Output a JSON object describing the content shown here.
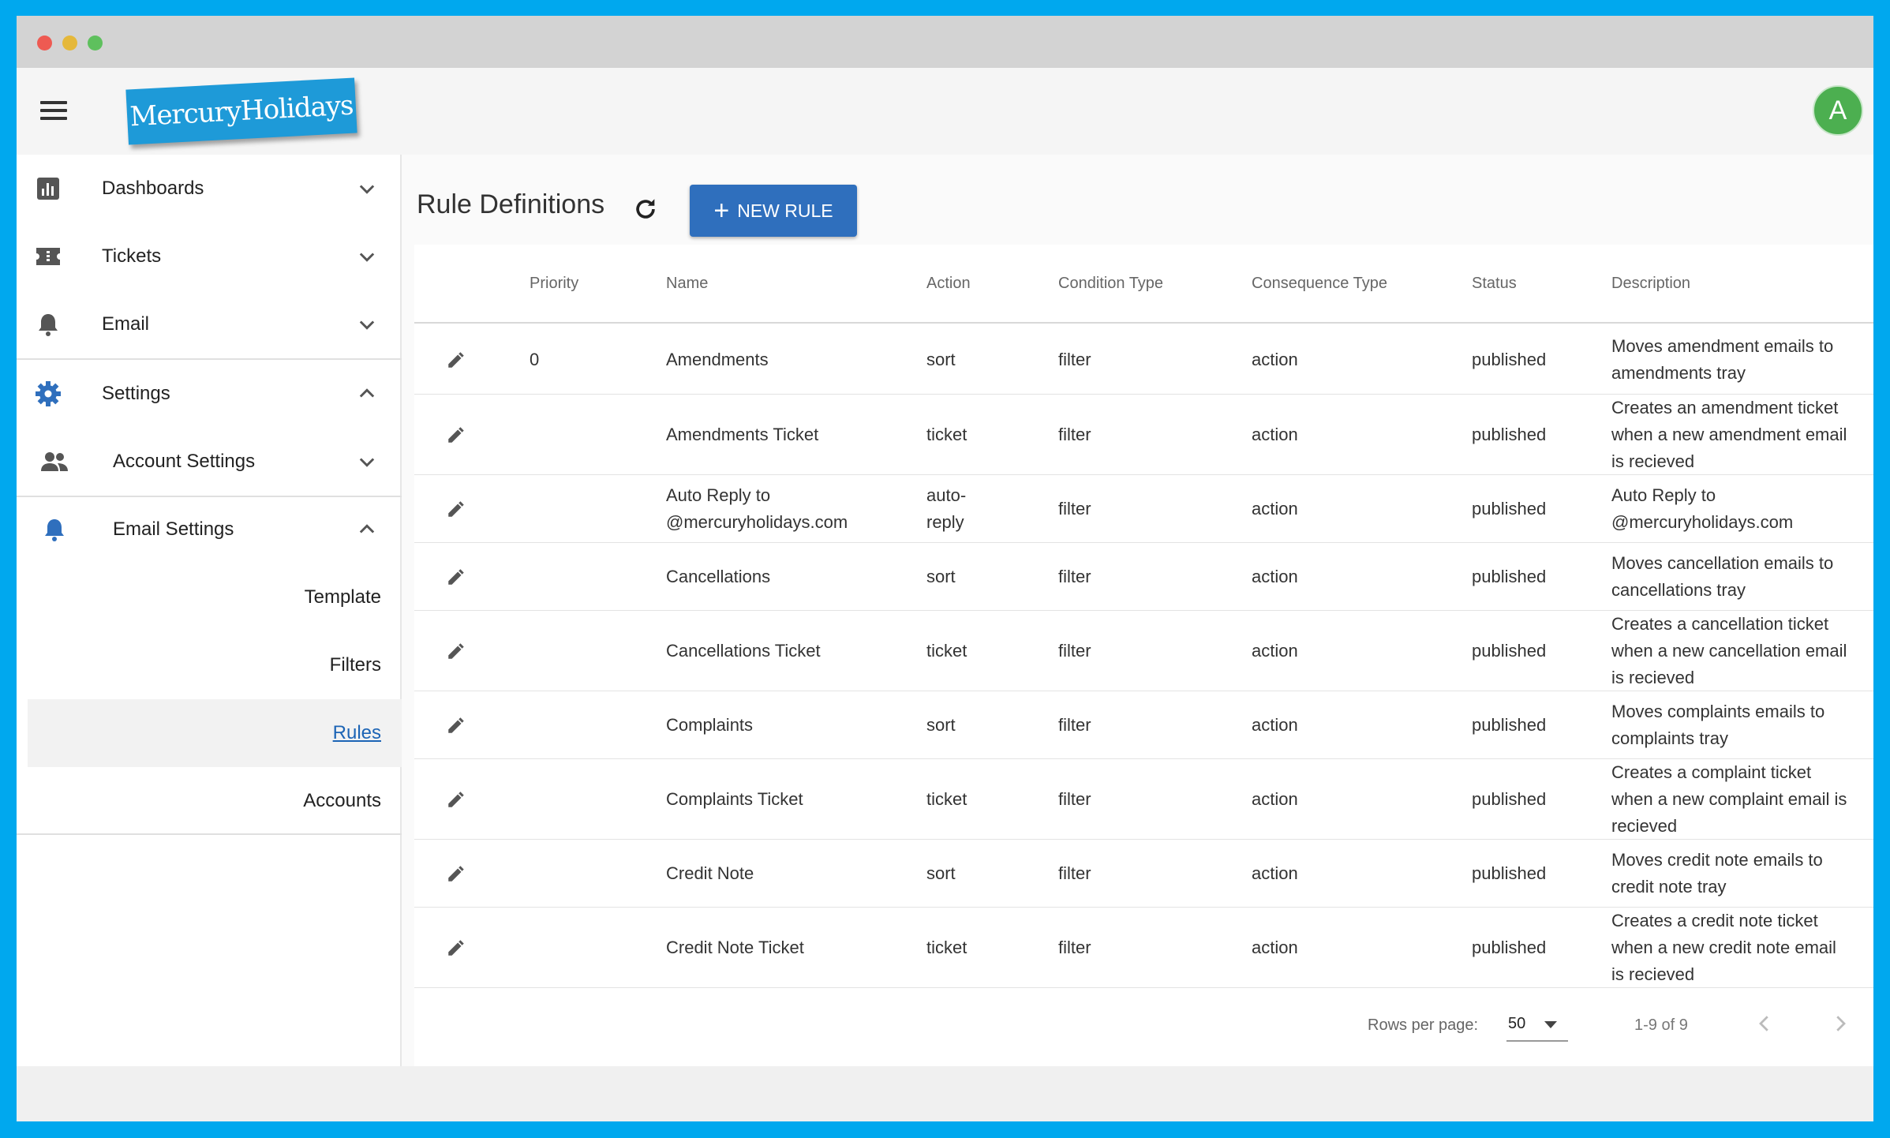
{
  "colors": {
    "accent": "#2f6fbd",
    "active_link": "#1c64b5",
    "avatar": "#4caf50",
    "frame": "#00a8ee"
  },
  "appbar": {
    "logo_text": "MercuryHolidays",
    "avatar_letter": "A"
  },
  "sidebar": {
    "items": [
      {
        "label": "Dashboards",
        "icon": "bar-chart-icon"
      },
      {
        "label": "Tickets",
        "icon": "ticket-icon"
      },
      {
        "label": "Email",
        "icon": "bell-icon"
      },
      {
        "label": "Settings",
        "icon": "gear-icon"
      },
      {
        "label": "Account Settings",
        "icon": "people-icon"
      },
      {
        "label": "Email Settings",
        "icon": "bell-icon"
      }
    ],
    "links": [
      "Template",
      "Filters",
      "Rules",
      "Accounts"
    ]
  },
  "main": {
    "title": "Rule Definitions",
    "new_button": "NEW RULE",
    "columns": [
      "Priority",
      "Name",
      "Action",
      "Condition Type",
      "Consequence Type",
      "Status",
      "Description"
    ],
    "rows": [
      {
        "priority": "0",
        "name": "Amendments",
        "action": "sort",
        "condition": "filter",
        "consequence": "action",
        "status": "published",
        "description": "Moves amendment emails to amendments tray"
      },
      {
        "priority": "",
        "name": "Amendments Ticket",
        "action": "ticket",
        "condition": "filter",
        "consequence": "action",
        "status": "published",
        "description": "Creates an amendment ticket when a new amendment email is recieved"
      },
      {
        "priority": "",
        "name": "Auto Reply to @mercuryholidays.com",
        "action": "auto-reply",
        "condition": "filter",
        "consequence": "action",
        "status": "published",
        "description": "Auto Reply to @mercuryholidays.com"
      },
      {
        "priority": "",
        "name": "Cancellations",
        "action": "sort",
        "condition": "filter",
        "consequence": "action",
        "status": "published",
        "description": "Moves cancellation emails to cancellations tray"
      },
      {
        "priority": "",
        "name": "Cancellations Ticket",
        "action": "ticket",
        "condition": "filter",
        "consequence": "action",
        "status": "published",
        "description": "Creates a cancellation ticket when a new cancellation email is recieved"
      },
      {
        "priority": "",
        "name": "Complaints",
        "action": "sort",
        "condition": "filter",
        "consequence": "action",
        "status": "published",
        "description": "Moves complaints emails to complaints tray"
      },
      {
        "priority": "",
        "name": "Complaints Ticket",
        "action": "ticket",
        "condition": "filter",
        "consequence": "action",
        "status": "published",
        "description": "Creates a complaint ticket when a new complaint email is recieved"
      },
      {
        "priority": "",
        "name": "Credit Note",
        "action": "sort",
        "condition": "filter",
        "consequence": "action",
        "status": "published",
        "description": "Moves credit note emails to credit note tray"
      },
      {
        "priority": "",
        "name": "Credit Note Ticket",
        "action": "ticket",
        "condition": "filter",
        "consequence": "action",
        "status": "published",
        "description": "Creates a credit note ticket when a new credit note email is recieved"
      }
    ],
    "pagination": {
      "rows_per_page_label": "Rows per page:",
      "rows_per_page": "50",
      "range": "1-9 of 9"
    }
  }
}
